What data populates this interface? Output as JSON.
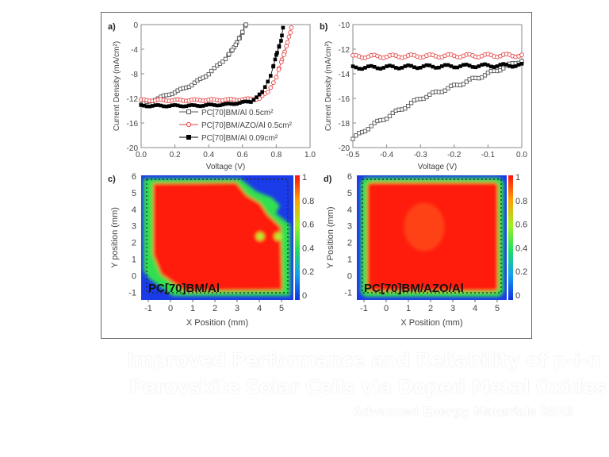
{
  "chart_data": [
    {
      "panel": "a)",
      "type": "line",
      "xlabel": "Voltage (V)",
      "ylabel": "Current Density (mA/cm²)",
      "xlim": [
        0,
        1
      ],
      "ylim": [
        -20,
        0
      ],
      "xticks": [
        "0.0",
        "0.2",
        "0.4",
        "0.6",
        "0.8",
        "1.0"
      ],
      "yticks": [
        "0",
        "-4",
        "-8",
        "-12",
        "-16",
        "-20"
      ],
      "legend": "bottom-right",
      "series": [
        {
          "name": "PC[70]BM/Al 0.5cm²",
          "marker": "open-square",
          "color": "#555555",
          "x": [
            0,
            0.1,
            0.2,
            0.3,
            0.4,
            0.5,
            0.55,
            0.6,
            0.62
          ],
          "y": [
            -13,
            -12,
            -11,
            -9.8,
            -8,
            -5.5,
            -3.8,
            -1.2,
            0
          ]
        },
        {
          "name": "PC[70]BM/AZO/Al 0.5cm²",
          "marker": "open-circle",
          "color": "#e84040",
          "x": [
            0,
            0.3,
            0.6,
            0.7,
            0.75,
            0.8,
            0.85,
            0.88,
            0.89
          ],
          "y": [
            -12.3,
            -12.3,
            -12.2,
            -12,
            -11,
            -8.5,
            -4.5,
            -1.5,
            -0.5
          ]
        },
        {
          "name": "PC[70]BM/Al 0.09cm²",
          "marker": "filled-square",
          "color": "#000000",
          "x": [
            0,
            0.3,
            0.5,
            0.65,
            0.72,
            0.77,
            0.8,
            0.83,
            0.84
          ],
          "y": [
            -13.2,
            -13.2,
            -13,
            -12.5,
            -11,
            -8,
            -5,
            -2.5,
            -0.5
          ]
        }
      ]
    },
    {
      "panel": "b)",
      "type": "line",
      "xlabel": "Voltage (V)",
      "ylabel": "Current Density (mA/cm²)",
      "xlim": [
        -0.5,
        0
      ],
      "ylim": [
        -20,
        -10
      ],
      "xticks": [
        "-0.5",
        "-0.4",
        "-0.3",
        "-0.2",
        "-0.1",
        "0.0"
      ],
      "yticks": [
        "-10",
        "-12",
        "-14",
        "-16",
        "-18",
        "-20"
      ],
      "series": [
        {
          "name": "PC[70]BM/Al 0.5cm²",
          "marker": "open-square",
          "color": "#555555",
          "x": [
            -0.5,
            -0.45,
            -0.3,
            -0.1,
            0
          ],
          "y": [
            -19.3,
            -18.3,
            -16,
            -14,
            -12.9
          ]
        },
        {
          "name": "PC[70]BM/AZO/Al 0.5cm²",
          "marker": "open-circle",
          "color": "#e84040",
          "x": [
            -0.5,
            0
          ],
          "y": [
            -12.6,
            -12.5
          ]
        },
        {
          "name": "PC[70]BM/Al 0.09cm²",
          "marker": "filled-square",
          "color": "#000000",
          "x": [
            -0.5,
            0
          ],
          "y": [
            -13.5,
            -13.3
          ]
        }
      ]
    },
    {
      "panel": "c)",
      "type": "heatmap",
      "label": "PC[70]BM/Al",
      "xlabel": "X Position (mm)",
      "ylabel": "Y position (mm)",
      "xticks": [
        "-1",
        "0",
        "1",
        "2",
        "3",
        "4",
        "5"
      ],
      "yticks": [
        "6",
        "5",
        "4",
        "3",
        "2",
        "1",
        "0",
        "-1"
      ],
      "colorbar_ticks": [
        "1",
        "0.8",
        "0.6",
        "0.4",
        "0.2",
        "0"
      ]
    },
    {
      "panel": "d)",
      "type": "heatmap",
      "label": "PC[70]BM/AZO/Al",
      "xlabel": "X Position (mm)",
      "ylabel": "Y Position (mm)",
      "xticks": [
        "-1",
        "0",
        "1",
        "2",
        "3",
        "4",
        "5"
      ],
      "yticks": [
        "6",
        "5",
        "4",
        "3",
        "2",
        "1",
        "0",
        "-1"
      ],
      "colorbar_ticks": [
        "1",
        "0.8",
        "0.6",
        "0.4",
        "0.2",
        "0"
      ]
    }
  ],
  "caption": {
    "title_line1": "Improved Performance and Reliability of p-i-n",
    "title_line2": "Perovskite Solar Cells via Doped Metal Oxides",
    "source": "Advanced Energy Materials 2016"
  }
}
